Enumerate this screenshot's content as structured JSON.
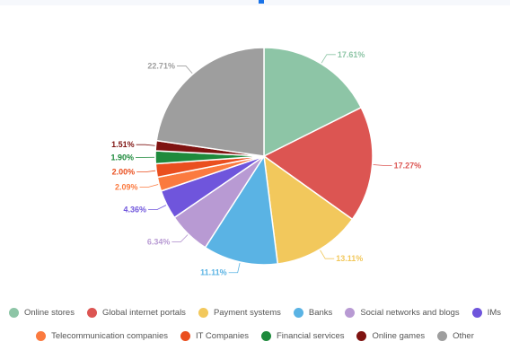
{
  "chart_data": {
    "type": "pie",
    "title": "",
    "legend_placement": "bottom",
    "categories": [
      "Online stores",
      "Global internet portals",
      "Payment systems",
      "Banks",
      "Social networks and blogs",
      "IMs",
      "Telecommunication companies",
      "IT Companies",
      "Financial services",
      "Online games",
      "Other"
    ],
    "values": [
      17.61,
      17.27,
      13.11,
      11.11,
      6.34,
      4.36,
      2.09,
      2.0,
      1.9,
      1.51,
      22.71
    ],
    "labels": [
      "17.61%",
      "17.27%",
      "13.11%",
      "11.11%",
      "6.34%",
      "4.36%",
      "2.09%",
      "2.00%",
      "1.90%",
      "1.51%",
      "22.71%"
    ],
    "colors": [
      "#8dc5a6",
      "#dc5552",
      "#f2c85c",
      "#5ab3e4",
      "#b89ad3",
      "#6f55dc",
      "#fb7a3f",
      "#ea4f1f",
      "#1e8a3c",
      "#7f1311",
      "#9e9e9e"
    ]
  },
  "legend_rows": [
    [
      0,
      1,
      2,
      3,
      4,
      5
    ],
    [
      6,
      7,
      8,
      9,
      10
    ]
  ]
}
